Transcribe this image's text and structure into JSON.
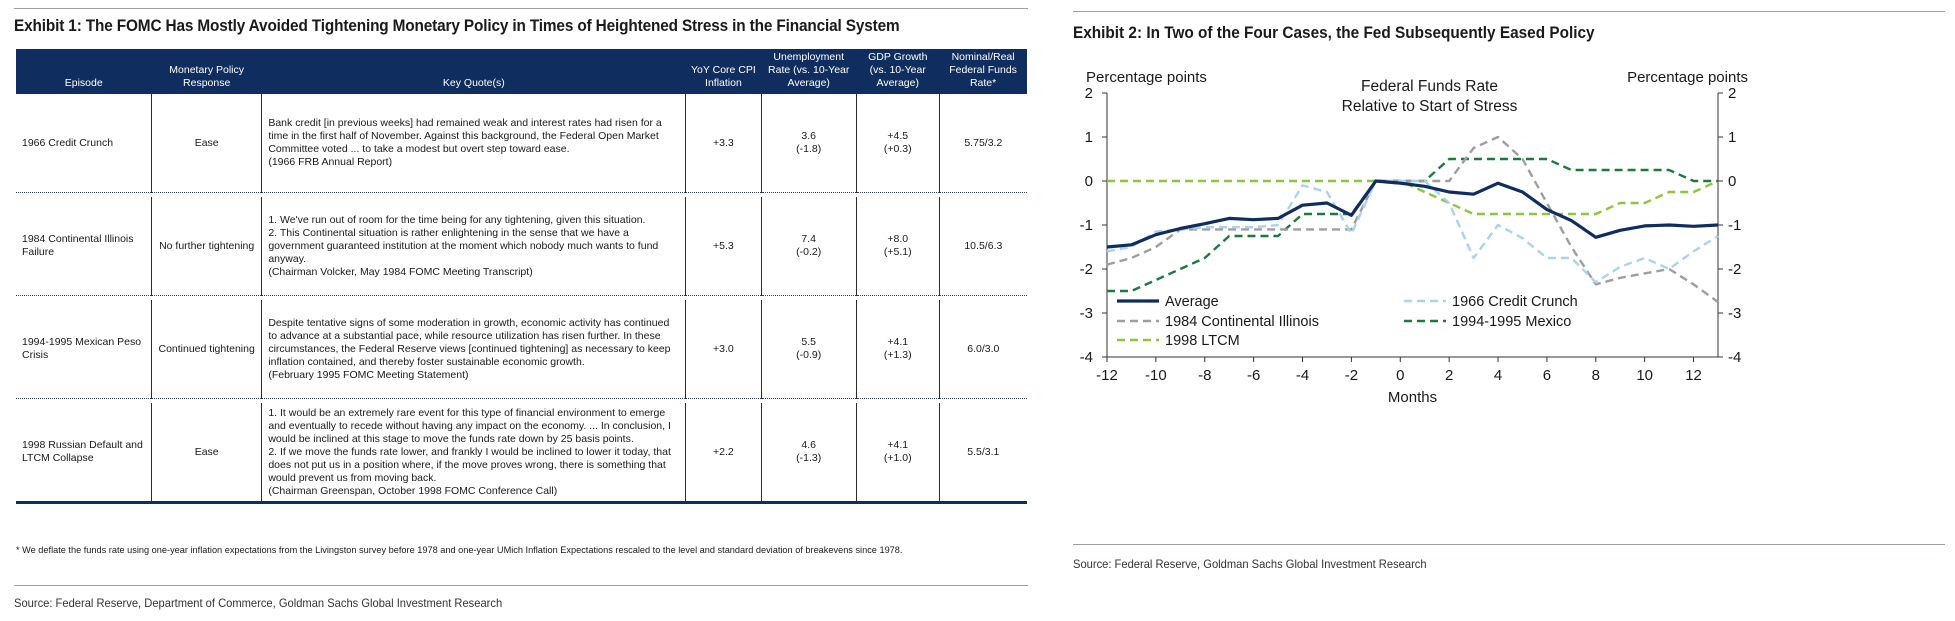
{
  "exhibit1": {
    "title": "Exhibit 1: The FOMC Has Mostly Avoided Tightening Monetary Policy in Times of Heightened Stress in the Financial System",
    "headers": [
      "Episode",
      "Monetary Policy Response",
      "Key Quote(s)",
      "YoY Core CPI Inflation",
      "Unemployment Rate (vs. 10-Year Average)",
      "GDP Growth (vs. 10-Year Average)",
      "Nominal/Real Federal Funds Rate*"
    ],
    "rows": [
      {
        "episode": "1966 Credit Crunch",
        "response": "Ease",
        "quote": [
          "Bank credit [in previous weeks] had remained weak and interest rates had risen for a time in the first half of November. Against this background, the Federal Open Market Committee voted ... to take a modest but overt step toward ease.",
          "(1966 FRB Annual Report)"
        ],
        "cpi": "+3.3",
        "unemp": [
          "3.6",
          "(-1.8)"
        ],
        "gdp": [
          "+4.5",
          "(+0.3)"
        ],
        "ffr": "5.75/3.2"
      },
      {
        "episode": "1984 Continental Illinois Failure",
        "response": "No further tightening",
        "quote": [
          "1. We've run out of room for the time being for any tightening, given this situation.",
          "2. This Continental situation is rather enlightening in the sense that we have a government guaranteed institution at the moment which nobody much wants to fund anyway.",
          "(Chairman Volcker, May 1984 FOMC Meeting Transcript)"
        ],
        "cpi": "+5.3",
        "unemp": [
          "7.4",
          "(-0.2)"
        ],
        "gdp": [
          "+8.0",
          "(+5.1)"
        ],
        "ffr": "10.5/6.3"
      },
      {
        "episode": "1994-1995 Mexican Peso Crisis",
        "response": "Continued tightening",
        "quote": [
          "Despite tentative signs of some moderation in growth, economic activity has continued to advance at a substantial pace, while resource utilization has risen further. In these circumstances, the Federal Reserve views [continued tightening] as necessary to keep inflation contained, and thereby foster sustainable economic growth.",
          "(February 1995 FOMC Meeting Statement)"
        ],
        "cpi": "+3.0",
        "unemp": [
          "5.5",
          "(-0.9)"
        ],
        "gdp": [
          "+4.1",
          "(+1.3)"
        ],
        "ffr": "6.0/3.0"
      },
      {
        "episode": "1998 Russian Default and LTCM Collapse",
        "response": "Ease",
        "quote": [
          "1. It would be an extremely rare event for this type of financial environment to emerge and eventually to recede without having any impact on the economy. ... In conclusion, I would be inclined at this stage to move the funds rate down by 25 basis points.",
          "2. If we move the funds rate lower, and frankly I would be inclined to lower it today, that does not put us in a position where, if the move proves wrong, there is something that would prevent us from moving back.",
          "(Chairman Greenspan, October 1998 FOMC Conference Call)"
        ],
        "cpi": "+2.2",
        "unemp": [
          "4.6",
          "(-1.3)"
        ],
        "gdp": [
          "+4.1",
          "(+1.0)"
        ],
        "ffr": "5.5/3.1"
      }
    ],
    "footnote": "* We deflate the funds rate using one-year inflation expectations from the Livingston survey before 1978 and one-year UMich Inflation Expectations rescaled to the level and standard deviation of breakevens since 1978.",
    "source": "Source: Federal Reserve, Department of Commerce, Goldman Sachs Global Investment Research"
  },
  "exhibit2": {
    "title": "Exhibit 2: In Two of the Four Cases, the Fed Subsequently Eased Policy",
    "source": "Source: Federal Reserve, Goldman Sachs Global Investment Research"
  },
  "chart_data": {
    "type": "line",
    "title": "Federal Funds Rate\nRelative to Start of Stress",
    "xlabel": "Months",
    "ylabel_left": "Percentage points",
    "ylabel_right": "Percentage points",
    "xlim": [
      -12,
      13
    ],
    "ylim": [
      -4,
      2
    ],
    "xticks": [
      -12,
      -10,
      -8,
      -6,
      -4,
      -2,
      0,
      2,
      4,
      6,
      8,
      10,
      12
    ],
    "yticks": [
      -4,
      -3,
      -2,
      -1,
      0,
      1,
      2
    ],
    "grid": false,
    "legend_position": "bottom-left",
    "x": [
      -12,
      -11,
      -10,
      -9,
      -8,
      -7,
      -6,
      -5,
      -4,
      -3,
      -2,
      -1,
      0,
      1,
      2,
      3,
      4,
      5,
      6,
      7,
      8,
      9,
      10,
      11,
      12,
      13
    ],
    "series": [
      {
        "name": "Average",
        "color": "#0f2d5e",
        "style": "solid",
        "values": [
          -1.5,
          -1.45,
          -1.22,
          -1.08,
          -0.97,
          -0.85,
          -0.88,
          -0.85,
          -0.55,
          -0.5,
          -0.78,
          0,
          -0.05,
          -0.12,
          -0.25,
          -0.3,
          -0.05,
          -0.25,
          -0.65,
          -0.9,
          -1.28,
          -1.12,
          -1.02,
          -1.0,
          -1.03,
          -1.0
        ]
      },
      {
        "name": "1966 Credit Crunch",
        "color": "#a8d4ec",
        "style": "dashed",
        "values": [
          -1.6,
          -1.5,
          -1.15,
          -1.1,
          -1.05,
          -1.05,
          -1.05,
          -1.0,
          -0.1,
          -0.25,
          -1.2,
          0,
          0,
          0,
          -0.5,
          -1.75,
          -1.0,
          -1.3,
          -1.75,
          -1.75,
          -2.3,
          -1.95,
          -1.75,
          -2.0,
          -1.6,
          -1.25
        ]
      },
      {
        "name": "1984 Continental Illinois",
        "color": "#9e9e9e",
        "style": "dashed",
        "values": [
          -1.9,
          -1.75,
          -1.5,
          -1.1,
          -1.1,
          -1.1,
          -1.1,
          -1.1,
          -1.1,
          -1.1,
          -1.1,
          0,
          0,
          0,
          0,
          0.75,
          1.0,
          0.5,
          -0.5,
          -1.5,
          -2.35,
          -2.2,
          -2.1,
          -2.0,
          -2.35,
          -2.75
        ]
      },
      {
        "name": "1994-1995 Mexico",
        "color": "#1e7a3c",
        "style": "dashed",
        "values": [
          -2.5,
          -2.5,
          -2.25,
          -2.0,
          -1.75,
          -1.25,
          -1.25,
          -1.25,
          -0.75,
          -0.75,
          -0.75,
          0,
          0,
          0,
          0.5,
          0.5,
          0.5,
          0.5,
          0.5,
          0.25,
          0.25,
          0.25,
          0.25,
          0.25,
          0,
          0
        ]
      },
      {
        "name": "1998 LTCM",
        "color": "#8cc63f",
        "style": "dashed",
        "values": [
          0,
          0,
          0,
          0,
          0,
          0,
          0,
          0,
          0,
          0,
          0,
          0,
          0,
          -0.25,
          -0.5,
          -0.75,
          -0.75,
          -0.75,
          -0.75,
          -0.75,
          -0.75,
          -0.5,
          -0.5,
          -0.25,
          -0.25,
          0
        ]
      }
    ]
  }
}
